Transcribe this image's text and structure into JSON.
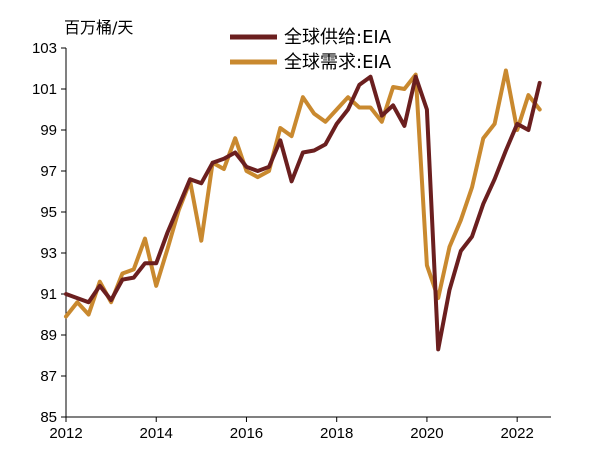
{
  "chart_data": {
    "type": "line",
    "unit_label": "百万桶/天",
    "ylim": [
      85,
      103
    ],
    "yticks": [
      85,
      87,
      89,
      91,
      93,
      95,
      97,
      99,
      101,
      103
    ],
    "xlim": [
      2012,
      2022.75
    ],
    "xticks": [
      2012,
      2014,
      2016,
      2018,
      2020,
      2022
    ],
    "grid": false,
    "legend_position": "top-center",
    "series": [
      {
        "name": "全球供给:EIA",
        "color": "#6b1f1f",
        "x": [
          2012.0,
          2012.25,
          2012.5,
          2012.75,
          2013.0,
          2013.25,
          2013.5,
          2013.75,
          2014.0,
          2014.25,
          2014.5,
          2014.75,
          2015.0,
          2015.25,
          2015.5,
          2015.75,
          2016.0,
          2016.25,
          2016.5,
          2016.75,
          2017.0,
          2017.25,
          2017.5,
          2017.75,
          2018.0,
          2018.25,
          2018.5,
          2018.75,
          2019.0,
          2019.25,
          2019.5,
          2019.75,
          2020.0,
          2020.25,
          2020.5,
          2020.75,
          2021.0,
          2021.25,
          2021.5,
          2021.75,
          2022.0,
          2022.25,
          2022.5
        ],
        "values": [
          91.0,
          90.8,
          90.6,
          91.4,
          90.7,
          91.7,
          91.8,
          92.5,
          92.5,
          94.0,
          95.3,
          96.6,
          96.4,
          97.4,
          97.6,
          97.9,
          97.2,
          97.0,
          97.2,
          98.5,
          96.5,
          97.9,
          98.0,
          98.3,
          99.3,
          100.0,
          101.2,
          101.6,
          99.7,
          100.2,
          99.2,
          101.6,
          100.0,
          88.3,
          91.2,
          93.1,
          93.8,
          95.4,
          96.6,
          98.0,
          99.3,
          99.0,
          101.3
        ]
      },
      {
        "name": "全球需求:EIA",
        "color": "#c9892f",
        "x": [
          2012.0,
          2012.25,
          2012.5,
          2012.75,
          2013.0,
          2013.25,
          2013.5,
          2013.75,
          2014.0,
          2014.25,
          2014.5,
          2014.75,
          2015.0,
          2015.25,
          2015.5,
          2015.75,
          2016.0,
          2016.25,
          2016.5,
          2016.75,
          2017.0,
          2017.25,
          2017.5,
          2017.75,
          2018.0,
          2018.25,
          2018.5,
          2018.75,
          2019.0,
          2019.25,
          2019.5,
          2019.75,
          2020.0,
          2020.25,
          2020.5,
          2020.75,
          2021.0,
          2021.25,
          2021.5,
          2021.75,
          2022.0,
          2022.25,
          2022.5
        ],
        "values": [
          89.9,
          90.6,
          90.0,
          91.6,
          90.6,
          92.0,
          92.2,
          93.7,
          91.4,
          93.2,
          95.1,
          96.5,
          93.6,
          97.4,
          97.1,
          98.6,
          97.0,
          96.7,
          97.0,
          99.1,
          98.7,
          100.6,
          99.8,
          99.4,
          100.0,
          100.6,
          100.1,
          100.1,
          99.4,
          101.1,
          101.0,
          101.7,
          92.4,
          90.8,
          93.3,
          94.6,
          96.2,
          98.6,
          99.3,
          101.9,
          99.0,
          100.7,
          100.0
        ]
      }
    ]
  }
}
